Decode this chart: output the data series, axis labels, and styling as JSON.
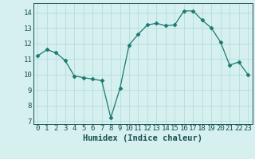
{
  "x": [
    0,
    1,
    2,
    3,
    4,
    5,
    6,
    7,
    8,
    9,
    10,
    11,
    12,
    13,
    14,
    15,
    16,
    17,
    18,
    19,
    20,
    21,
    22,
    23
  ],
  "y": [
    11.2,
    11.6,
    11.4,
    10.9,
    9.9,
    9.8,
    9.7,
    9.6,
    7.2,
    9.1,
    11.9,
    12.6,
    13.2,
    13.3,
    13.15,
    13.2,
    14.1,
    14.1,
    13.5,
    13.0,
    12.1,
    10.6,
    10.8,
    10.0
  ],
  "xlabel": "Humidex (Indice chaleur)",
  "ylim": [
    6.8,
    14.6
  ],
  "xlim": [
    -0.5,
    23.5
  ],
  "yticks": [
    7,
    8,
    9,
    10,
    11,
    12,
    13,
    14
  ],
  "xticks": [
    0,
    1,
    2,
    3,
    4,
    5,
    6,
    7,
    8,
    9,
    10,
    11,
    12,
    13,
    14,
    15,
    16,
    17,
    18,
    19,
    20,
    21,
    22,
    23
  ],
  "xtick_labels": [
    "0",
    "1",
    "2",
    "3",
    "4",
    "5",
    "6",
    "7",
    "8",
    "9",
    "10",
    "11",
    "12",
    "13",
    "14",
    "15",
    "16",
    "17",
    "18",
    "19",
    "20",
    "21",
    "22",
    "23"
  ],
  "line_color": "#1a7a6e",
  "marker_color": "#1a7a6e",
  "bg_color": "#d6f0f0",
  "grid_color": "#afd8d8",
  "tick_label_color": "#1a5050",
  "xlabel_color": "#1a5050",
  "xlabel_fontsize": 7.5,
  "tick_fontsize": 6.5
}
